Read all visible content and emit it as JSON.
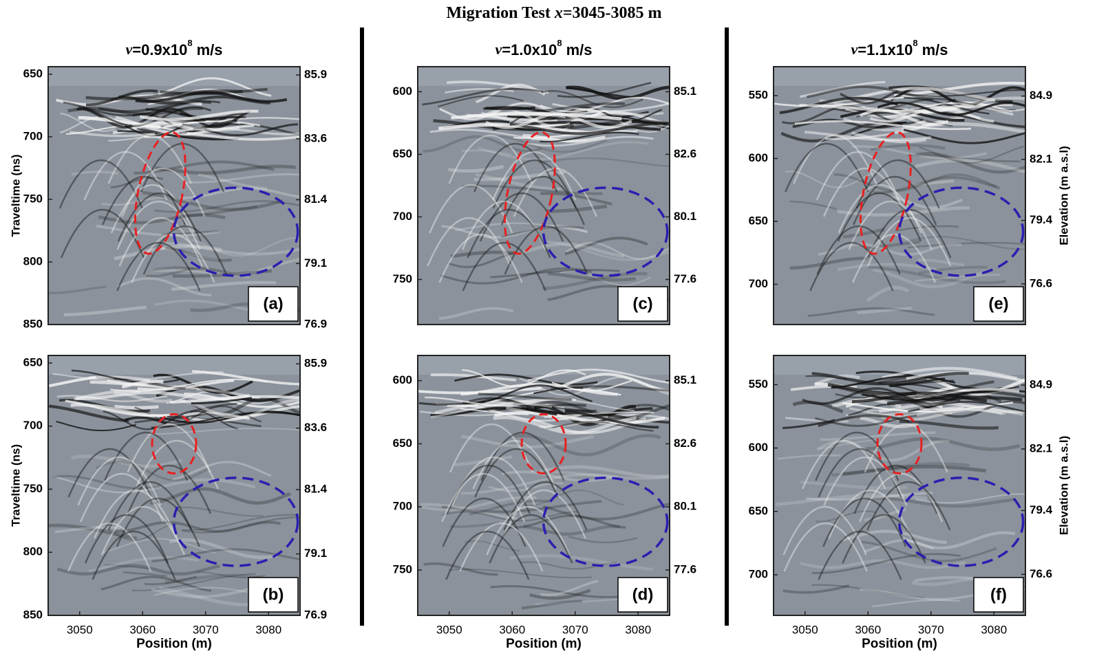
{
  "title": {
    "prefix": "Migration Test",
    "variable": "x",
    "suffix": "=3045-3085 m"
  },
  "y_label": "Traveltime (ns)",
  "y2_label": "Elevation (m a.s.l)",
  "x_label": "Position (m)",
  "columns": [
    {
      "heading": {
        "symbol": "v",
        "text": "=0.9x10",
        "exponent": "8",
        "unit": "m/s"
      },
      "position_range": [
        3045,
        3085
      ],
      "position_ticks": [
        3050,
        3060,
        3070,
        3080
      ],
      "traveltime_range": [
        644,
        850
      ],
      "elevation_range": [
        86.2,
        76.9
      ],
      "panels": [
        {
          "label": "(a)",
          "traveltime_ticks": [
            650,
            700,
            750,
            800,
            850
          ],
          "elevation_ticks": [
            85.9,
            83.6,
            81.4,
            79.1,
            76.9
          ]
        },
        {
          "label": "(b)",
          "traveltime_ticks": [
            650,
            700,
            750,
            800,
            850
          ],
          "elevation_ticks": [
            85.9,
            83.6,
            81.4,
            79.1,
            76.9
          ]
        }
      ]
    },
    {
      "heading": {
        "symbol": "v",
        "text": "=1.0x10",
        "exponent": "8",
        "unit": "m/s"
      },
      "position_range": [
        3045,
        3085
      ],
      "position_ticks": [
        3050,
        3060,
        3070,
        3080
      ],
      "traveltime_range": [
        580,
        786
      ],
      "elevation_range": [
        86.1,
        75.8
      ],
      "panels": [
        {
          "label": "(c)",
          "traveltime_ticks": [
            600,
            650,
            700,
            750
          ],
          "elevation_ticks": [
            85.1,
            82.6,
            80.1,
            77.6
          ]
        },
        {
          "label": "(d)",
          "traveltime_ticks": [
            600,
            650,
            700,
            750
          ],
          "elevation_ticks": [
            85.1,
            82.6,
            80.1,
            77.6
          ]
        }
      ]
    },
    {
      "heading": {
        "symbol": "v",
        "text": "=1.1x10",
        "exponent": "8",
        "unit": "m/s"
      },
      "position_range": [
        3045,
        3085
      ],
      "position_ticks": [
        3050,
        3060,
        3070,
        3080
      ],
      "traveltime_range": [
        527,
        732
      ],
      "elevation_range": [
        86.2,
        74.8
      ],
      "panels": [
        {
          "label": "(e)",
          "traveltime_ticks": [
            550,
            600,
            650,
            700
          ],
          "elevation_ticks": [
            84.9,
            82.1,
            79.4,
            76.6
          ]
        },
        {
          "label": "(f)",
          "traveltime_ticks": [
            550,
            600,
            650,
            700
          ],
          "elevation_ticks": [
            84.9,
            82.1,
            79.4,
            76.6
          ]
        }
      ]
    }
  ]
}
